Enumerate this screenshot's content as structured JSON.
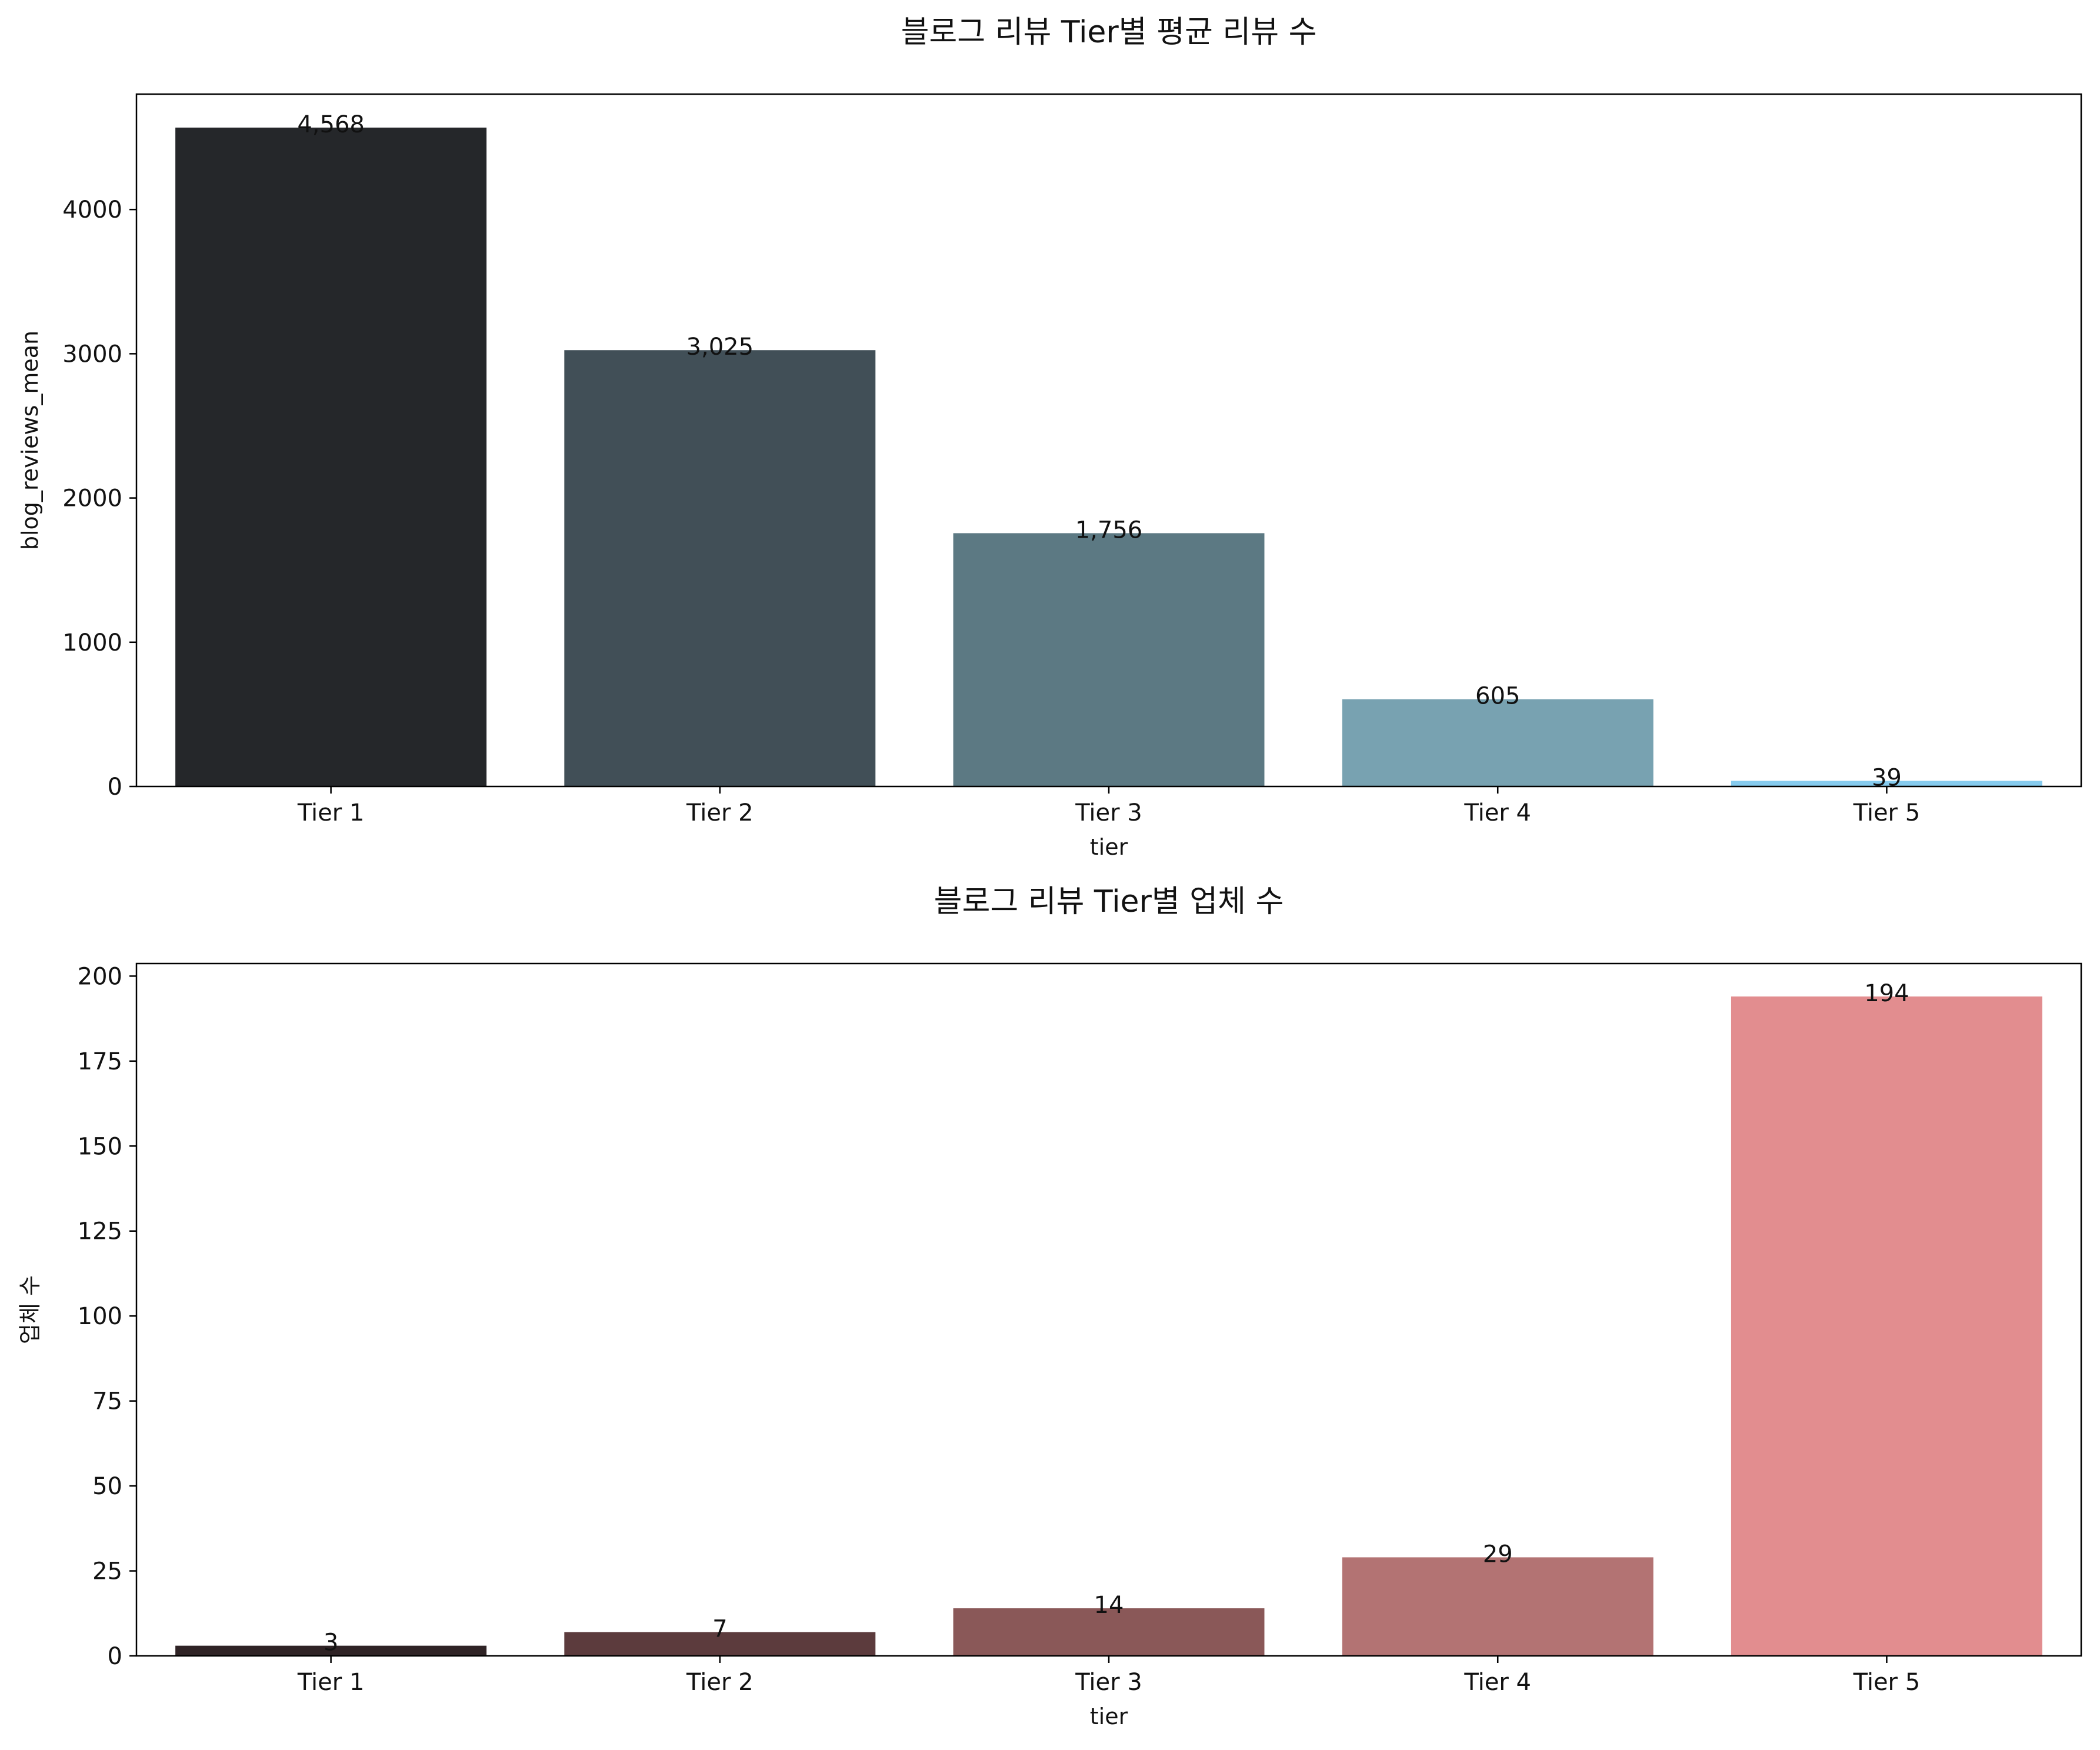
{
  "chart_data": [
    {
      "type": "bar",
      "title": "블로그 리뷰 Tier별 평균 리뷰 수",
      "xlabel": "tier",
      "ylabel": "blog_reviews_mean",
      "categories": [
        "Tier 1",
        "Tier 2",
        "Tier 3",
        "Tier 4",
        "Tier 5"
      ],
      "values": [
        4568,
        3025,
        1756,
        605,
        39
      ],
      "data_labels": [
        "4,568",
        "3,025",
        "1,756",
        "605",
        "39"
      ],
      "ylim": [
        0,
        4800
      ],
      "yticks": [
        0,
        1000,
        2000,
        3000,
        4000
      ],
      "colors": [
        "#25272a",
        "#414f57",
        "#5c7983",
        "#78a2b1",
        "#86cbee"
      ],
      "grid": false,
      "legend": "none"
    },
    {
      "type": "bar",
      "title": "블로그 리뷰 Tier별 업체 수",
      "xlabel": "tier",
      "ylabel": "업체 수",
      "categories": [
        "Tier 1",
        "Tier 2",
        "Tier 3",
        "Tier 4",
        "Tier 5"
      ],
      "values": [
        3,
        7,
        14,
        29,
        194
      ],
      "data_labels": [
        "3",
        "7",
        "14",
        "29",
        "194"
      ],
      "ylim": [
        0,
        203.7
      ],
      "yticks": [
        0,
        25,
        50,
        75,
        100,
        125,
        150,
        175,
        200
      ],
      "colors": [
        "#2f2325",
        "#5c3b3d",
        "#8a5858",
        "#b37373",
        "#e28d8f"
      ],
      "grid": false,
      "legend": "none"
    }
  ]
}
